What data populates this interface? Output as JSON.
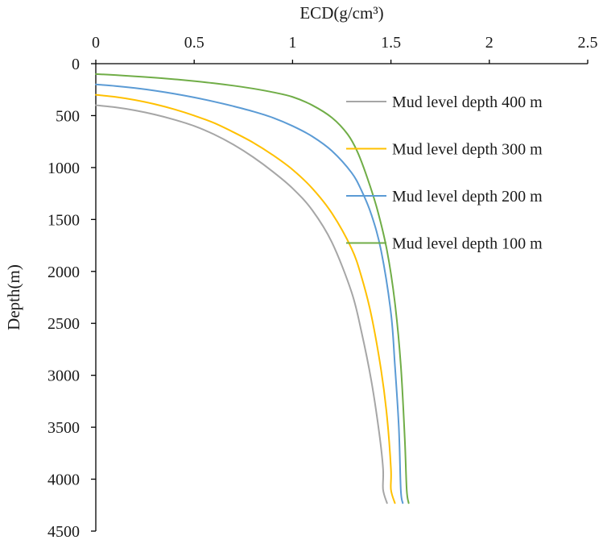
{
  "chart_data": {
    "type": "line",
    "title": "",
    "xlabel": "ECD(g/cm³)",
    "ylabel": "Depth(m)",
    "xlim": [
      0,
      2.5
    ],
    "ylim": [
      0,
      4500
    ],
    "x_axis_position": "top",
    "y_axis_inverted": true,
    "grid": false,
    "legend_position": "right-top",
    "x_ticks": [
      "0",
      "0.5",
      "1",
      "1.5",
      "2",
      "2.5"
    ],
    "y_ticks": [
      "0",
      "500",
      "1000",
      "1500",
      "2000",
      "2500",
      "3000",
      "3500",
      "4000",
      "4500"
    ],
    "series": [
      {
        "name": "Mud level depth 400 m",
        "color": "#a6a6a6",
        "points": [
          [
            0,
            400
          ],
          [
            0.1,
            420
          ],
          [
            0.2,
            450
          ],
          [
            0.3,
            490
          ],
          [
            0.4,
            540
          ],
          [
            0.5,
            600
          ],
          [
            0.6,
            680
          ],
          [
            0.7,
            780
          ],
          [
            0.8,
            900
          ],
          [
            0.9,
            1040
          ],
          [
            1.0,
            1200
          ],
          [
            1.1,
            1410
          ],
          [
            1.2,
            1720
          ],
          [
            1.3,
            2200
          ],
          [
            1.35,
            2580
          ],
          [
            1.4,
            3050
          ],
          [
            1.44,
            3550
          ],
          [
            1.46,
            3900
          ],
          [
            1.46,
            4100
          ],
          [
            1.48,
            4230
          ]
        ]
      },
      {
        "name": "Mud level depth 300 m",
        "color": "#ffc000",
        "points": [
          [
            0,
            300
          ],
          [
            0.1,
            320
          ],
          [
            0.2,
            350
          ],
          [
            0.3,
            390
          ],
          [
            0.4,
            440
          ],
          [
            0.5,
            500
          ],
          [
            0.6,
            570
          ],
          [
            0.7,
            660
          ],
          [
            0.8,
            760
          ],
          [
            0.9,
            880
          ],
          [
            1.0,
            1020
          ],
          [
            1.1,
            1200
          ],
          [
            1.2,
            1440
          ],
          [
            1.3,
            1780
          ],
          [
            1.35,
            2050
          ],
          [
            1.4,
            2420
          ],
          [
            1.45,
            2950
          ],
          [
            1.48,
            3400
          ],
          [
            1.5,
            3900
          ],
          [
            1.5,
            4100
          ],
          [
            1.52,
            4230
          ]
        ]
      },
      {
        "name": "Mud level depth 200 m",
        "color": "#5b9bd5",
        "points": [
          [
            0,
            200
          ],
          [
            0.1,
            215
          ],
          [
            0.2,
            235
          ],
          [
            0.3,
            260
          ],
          [
            0.4,
            290
          ],
          [
            0.5,
            325
          ],
          [
            0.6,
            365
          ],
          [
            0.7,
            410
          ],
          [
            0.8,
            460
          ],
          [
            0.9,
            520
          ],
          [
            1.0,
            600
          ],
          [
            1.1,
            700
          ],
          [
            1.2,
            840
          ],
          [
            1.3,
            1050
          ],
          [
            1.35,
            1220
          ],
          [
            1.4,
            1450
          ],
          [
            1.45,
            1800
          ],
          [
            1.5,
            2400
          ],
          [
            1.52,
            2900
          ],
          [
            1.54,
            3500
          ],
          [
            1.55,
            4100
          ],
          [
            1.56,
            4230
          ]
        ]
      },
      {
        "name": "Mud level depth 100 m",
        "color": "#70ad47",
        "points": [
          [
            0,
            100
          ],
          [
            0.1,
            110
          ],
          [
            0.2,
            122
          ],
          [
            0.3,
            135
          ],
          [
            0.4,
            150
          ],
          [
            0.5,
            168
          ],
          [
            0.6,
            188
          ],
          [
            0.7,
            212
          ],
          [
            0.8,
            240
          ],
          [
            0.9,
            275
          ],
          [
            1.0,
            320
          ],
          [
            1.1,
            400
          ],
          [
            1.2,
            520
          ],
          [
            1.28,
            680
          ],
          [
            1.33,
            850
          ],
          [
            1.38,
            1100
          ],
          [
            1.43,
            1400
          ],
          [
            1.48,
            1800
          ],
          [
            1.52,
            2300
          ],
          [
            1.55,
            2900
          ],
          [
            1.57,
            3600
          ],
          [
            1.58,
            4100
          ],
          [
            1.59,
            4230
          ]
        ]
      }
    ]
  }
}
